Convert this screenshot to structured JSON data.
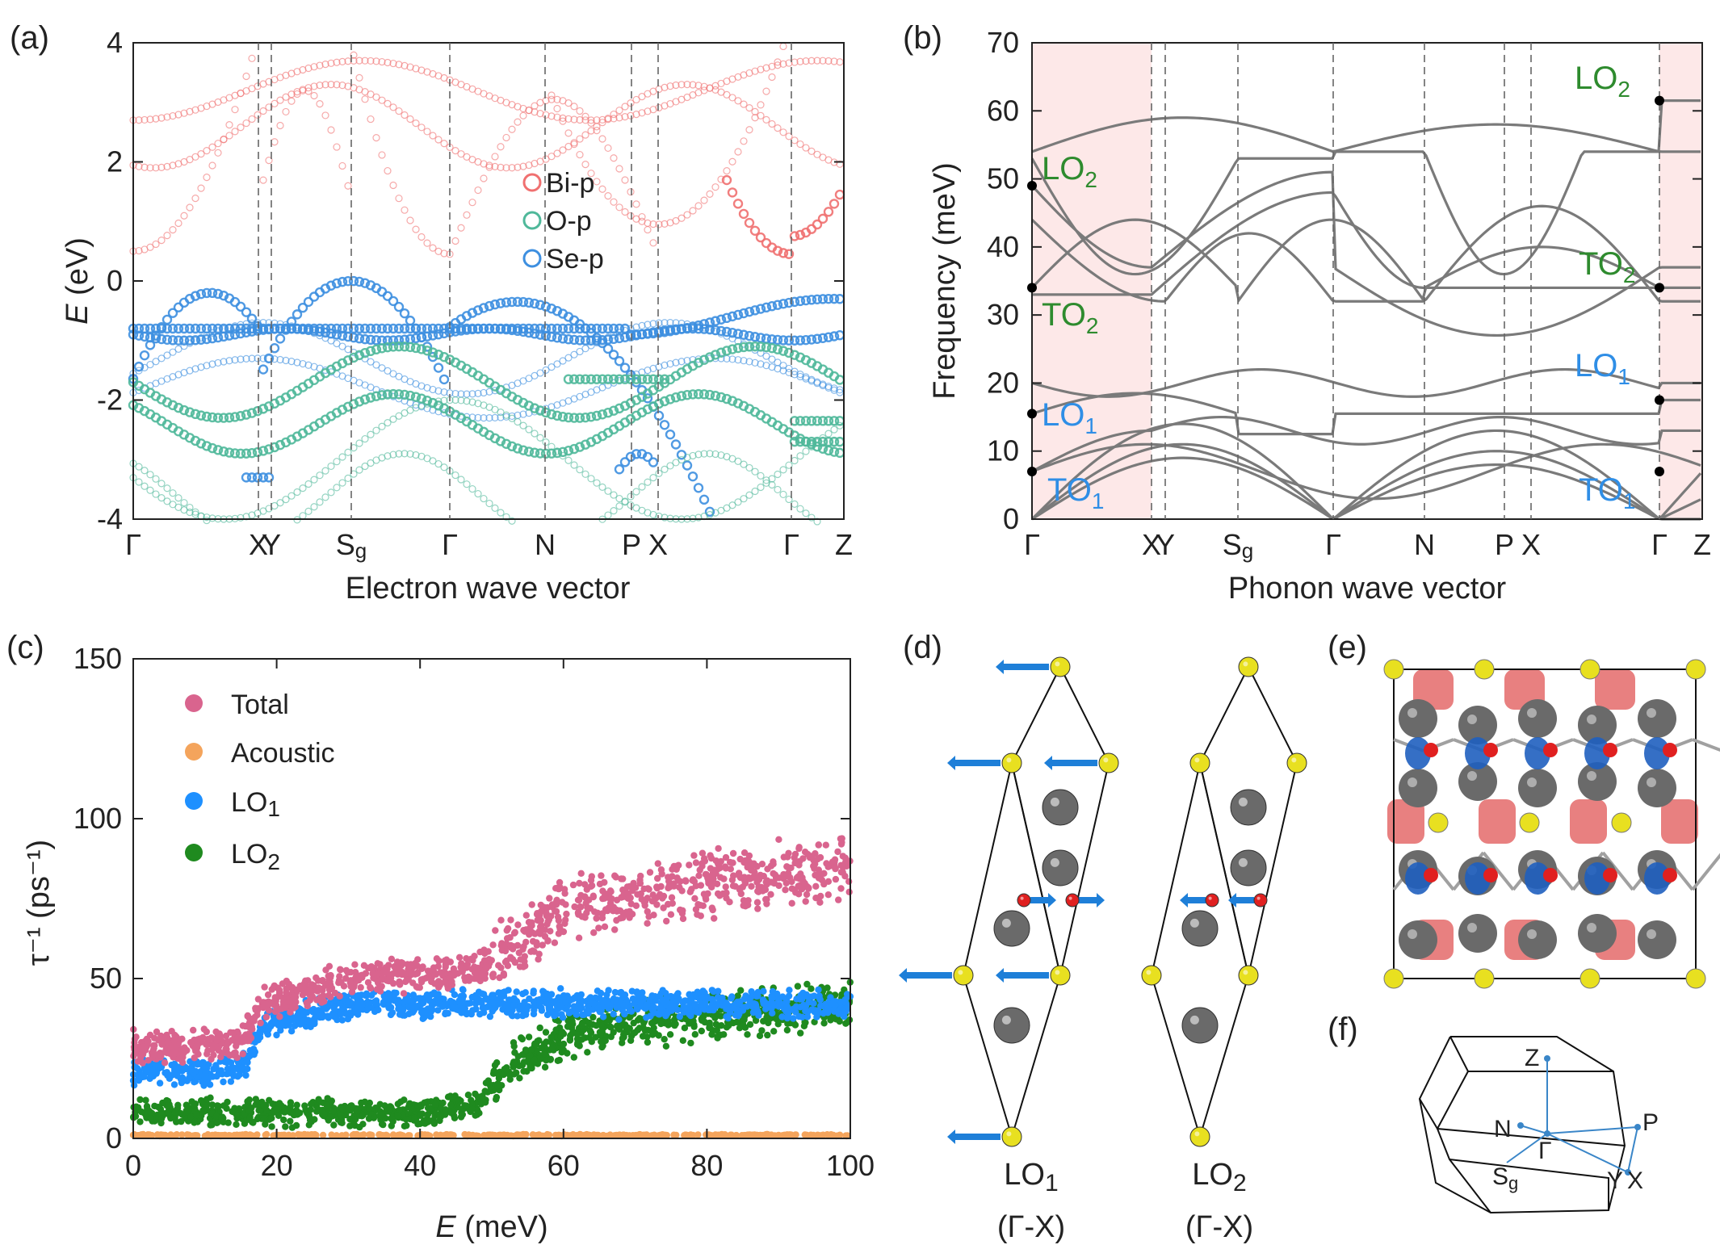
{
  "colors": {
    "bi_p": "#f07070",
    "o_p": "#4fb89a",
    "se_p": "#3d8fe0",
    "phonon_line": "#7a7a7a",
    "shade": "#fde8e8",
    "total": "#d9648e",
    "acoustic": "#f4a45c",
    "lo1": "#1e90ff",
    "lo2": "#1f8a1f",
    "mode_green": "#2e8b2e",
    "mode_blue": "#2f8ee6",
    "se_atom": "#e8e020",
    "bi_atom": "#6a6a6a",
    "o_atom": "#e02020",
    "arrow": "#1e7fd8",
    "isosurface": "#e88080"
  },
  "panel_labels": {
    "a": "(a)",
    "b": "(b)",
    "c": "(c)",
    "d": "(d)",
    "e": "(e)",
    "f": "(f)"
  },
  "panel_a": {
    "chart_data": {
      "type": "line",
      "title": "",
      "xlabel": "Electron wave vector",
      "ylabel_italic": "E",
      "ylabel_rest": " (eV)",
      "ylim": [
        -4,
        4
      ],
      "yticks": [
        "4",
        "2",
        "0",
        "-2",
        "-4"
      ],
      "k_path_labels": [
        "Γ",
        "X",
        "Y",
        "S",
        "Γ",
        "N",
        "P",
        "X",
        "Γ",
        "Z"
      ],
      "sg_subscript": "g",
      "series": [
        {
          "name": "Bi-p"
        },
        {
          "name": "O-p"
        },
        {
          "name": "Se-p"
        }
      ],
      "bands": {
        "conduction_min_eV": [
          0.5,
          0.9,
          0.45,
          0.95,
          0.45
        ],
        "valence_max_eV": [
          -0.2,
          0.0,
          -0.35,
          -0.6
        ]
      }
    }
  },
  "panel_b": {
    "chart_data": {
      "type": "line",
      "xlabel": "Phonon wave vector",
      "ylabel": "Frequency (meV)",
      "ylim": [
        0,
        70
      ],
      "yticks": [
        "70",
        "60",
        "50",
        "40",
        "30",
        "20",
        "10",
        "0"
      ],
      "k_path_labels": [
        "Γ",
        "X",
        "Y",
        "S",
        "Γ",
        "N",
        "P",
        "X",
        "Γ",
        "Z"
      ],
      "sg_subscript": "g",
      "gamma_left_modes_meV": {
        "LO2": 49,
        "TO2": 34,
        "LO1": 15.5,
        "TO1": 7
      },
      "gamma_right_modes_meV": {
        "LO2": 61.5,
        "TO2": 34,
        "LO1": 17.5,
        "TO1": 7
      }
    },
    "mode_labels": {
      "lo2_left": "LO",
      "lo2_left_sub": "2",
      "to2_left": "TO",
      "to2_left_sub": "2",
      "lo1_left": "LO",
      "lo1_left_sub": "1",
      "to1_left": "TO",
      "to1_left_sub": "1",
      "lo2_right": "LO",
      "lo2_right_sub": "2",
      "to2_right": "TO",
      "to2_right_sub": "2",
      "lo1_right": "LO",
      "lo1_right_sub": "1",
      "to1_right": "TO",
      "to1_right_sub": "1"
    }
  },
  "panel_c": {
    "chart_data": {
      "type": "scatter",
      "xlabel_italic": "E",
      "xlabel_rest": " (meV)",
      "ylabel": "τ⁻¹ (ps⁻¹)",
      "xlim": [
        0,
        100
      ],
      "ylim": [
        0,
        150
      ],
      "xticks": [
        "0",
        "20",
        "40",
        "60",
        "80",
        "100"
      ],
      "yticks": [
        "150",
        "100",
        "50",
        "0"
      ],
      "series": [
        {
          "name": "Total",
          "sub": "",
          "trend": [
            [
              0,
              29
            ],
            [
              15,
              29
            ],
            [
              18,
              42
            ],
            [
              30,
              50
            ],
            [
              47,
              52
            ],
            [
              52,
              58
            ],
            [
              60,
              72
            ],
            [
              80,
              80
            ],
            [
              100,
              85
            ]
          ]
        },
        {
          "name": "Acoustic",
          "sub": "",
          "trend": [
            [
              0,
              1
            ],
            [
              100,
              1
            ]
          ]
        },
        {
          "name": "LO",
          "sub": "1",
          "trend": [
            [
              0,
              21
            ],
            [
              15,
              21
            ],
            [
              18,
              35
            ],
            [
              30,
              42
            ],
            [
              50,
              42
            ],
            [
              60,
              42
            ],
            [
              80,
              42
            ],
            [
              100,
              42
            ]
          ]
        },
        {
          "name": "LO",
          "sub": "2",
          "trend": [
            [
              0,
              8
            ],
            [
              40,
              8
            ],
            [
              48,
              11
            ],
            [
              52,
              22
            ],
            [
              60,
              32
            ],
            [
              80,
              38
            ],
            [
              100,
              42
            ]
          ]
        }
      ]
    }
  },
  "panel_d": {
    "captions": [
      {
        "mode": "LO",
        "sub": "1",
        "path": "(Γ-X)"
      },
      {
        "mode": "LO",
        "sub": "2",
        "path": "(Γ-X)"
      }
    ]
  },
  "panel_f": {
    "bz_labels": {
      "z": "Z",
      "n": "N",
      "gamma": "Γ",
      "p": "P",
      "s": "S",
      "s_sub": "g",
      "y": "Y",
      "x": "X"
    }
  }
}
